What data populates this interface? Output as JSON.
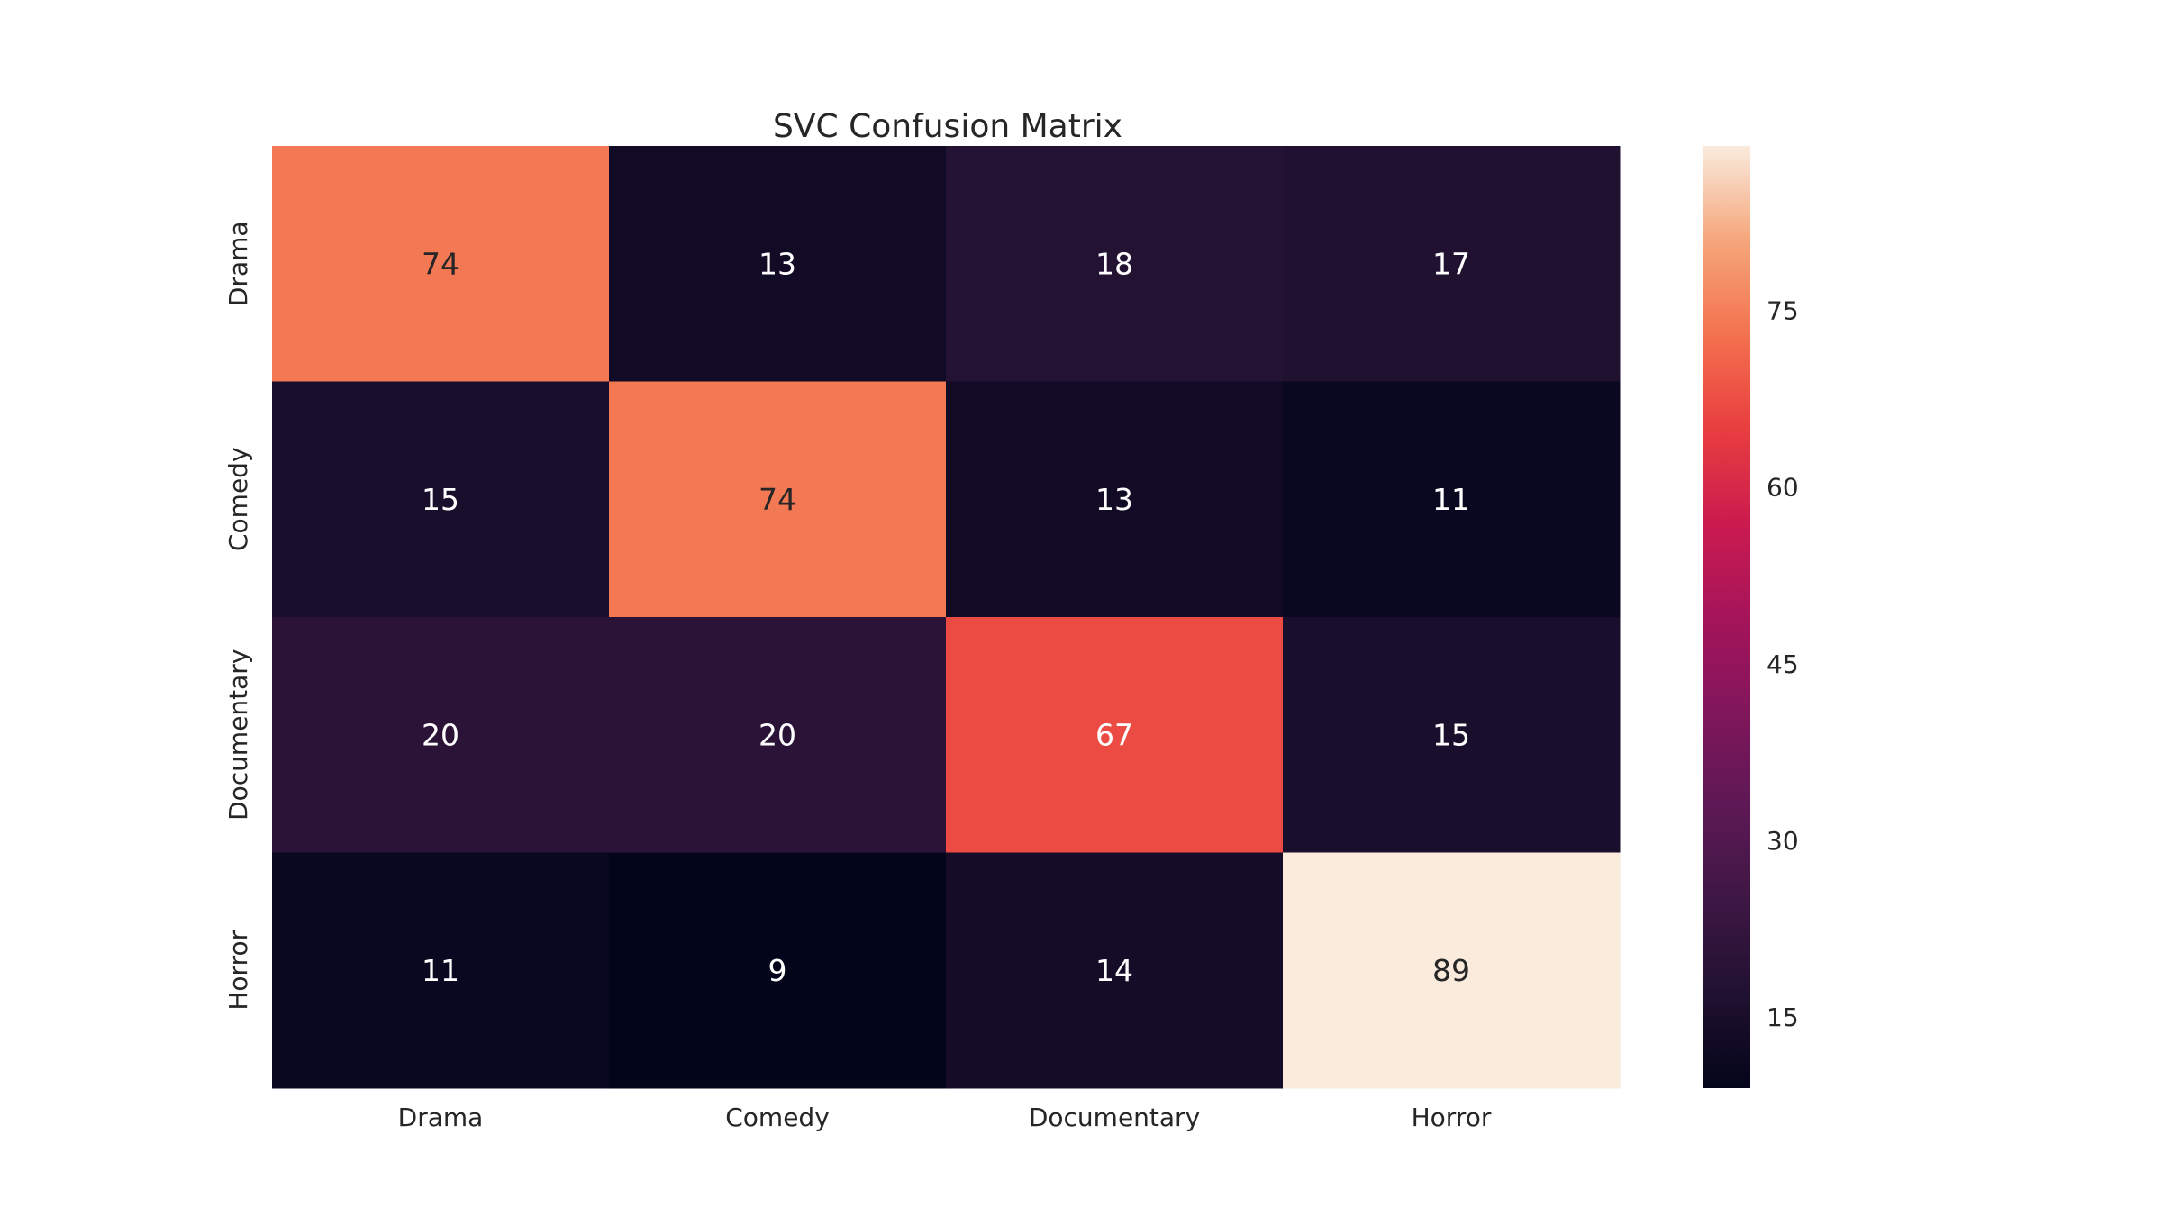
{
  "chart_data": {
    "type": "heatmap",
    "title": "SVC Confusion Matrix",
    "xlabel": "",
    "ylabel": "",
    "x_categories": [
      "Drama",
      "Comedy",
      "Documentary",
      "Horror"
    ],
    "y_categories": [
      "Drama",
      "Comedy",
      "Documentary",
      "Horror"
    ],
    "values": [
      [
        74,
        13,
        18,
        17
      ],
      [
        15,
        74,
        13,
        11
      ],
      [
        20,
        20,
        67,
        15
      ],
      [
        11,
        9,
        14,
        89
      ]
    ],
    "colormap": "rocket",
    "colorbar": {
      "vmin": 9,
      "vmax": 89,
      "ticks": [
        15,
        30,
        45,
        60,
        75
      ]
    },
    "annotations": true,
    "grid": false,
    "legend": "colorbar-right"
  }
}
